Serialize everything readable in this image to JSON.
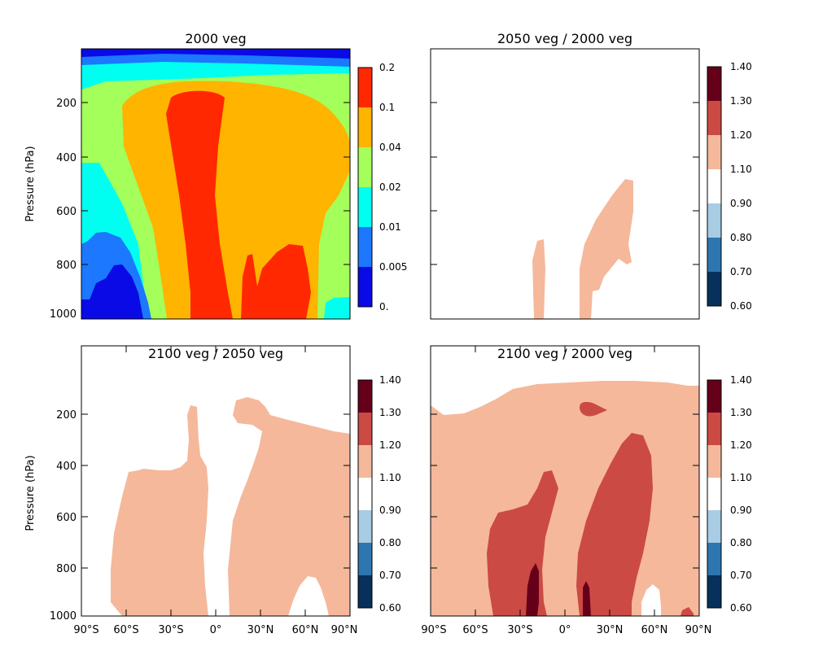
{
  "chart_data": [
    {
      "type": "contour",
      "title": "2000 veg",
      "ylabel": "Pressure (hPa)",
      "xlabel": "",
      "x_ticks": [],
      "y_ticks": [
        "200",
        "400",
        "600",
        "800",
        "1000"
      ],
      "ylim": [
        1000,
        0
      ],
      "xlim": [
        -90,
        90
      ],
      "colorbar": {
        "labels": [
          "0.",
          "0.005",
          "0.01",
          "0.02",
          "0.04",
          "0.1",
          "0.2"
        ],
        "colors": [
          "#0a0ae6",
          "#1c78ff",
          "#00fff0",
          "#a4ff5a",
          "#ffb400",
          "#ff2800"
        ]
      }
    },
    {
      "type": "contour",
      "title": "2050 veg / 2000 veg",
      "ylabel": "",
      "xlabel": "",
      "x_ticks": [],
      "y_ticks": [],
      "ylim": [
        1000,
        0
      ],
      "xlim": [
        -90,
        90
      ],
      "colorbar": {
        "labels": [
          "0.60",
          "0.70",
          "0.80",
          "0.90",
          "1.10",
          "1.20",
          "1.30",
          "1.40"
        ],
        "colors": [
          "#08305c",
          "#2e76b0",
          "#a7cce4",
          "#ffffff",
          "#f5b89b",
          "#cc4a44",
          "#66001a"
        ]
      }
    },
    {
      "type": "contour",
      "title": "2100 veg / 2050 veg",
      "ylabel": "Pressure (hPa)",
      "xlabel": "",
      "x_ticks": [
        "90°S",
        "60°S",
        "30°S",
        "0°",
        "30°N",
        "60°N",
        "90°N"
      ],
      "y_ticks": [
        "200",
        "400",
        "600",
        "800",
        "1000"
      ],
      "ylim": [
        1000,
        0
      ],
      "xlim": [
        -90,
        90
      ],
      "colorbar": {
        "labels": [
          "0.60",
          "0.70",
          "0.80",
          "0.90",
          "1.10",
          "1.20",
          "1.30",
          "1.40"
        ],
        "colors": [
          "#08305c",
          "#2e76b0",
          "#a7cce4",
          "#ffffff",
          "#f5b89b",
          "#cc4a44",
          "#66001a"
        ]
      }
    },
    {
      "type": "contour",
      "title": "2100 veg / 2000 veg",
      "ylabel": "",
      "xlabel": "",
      "x_ticks": [
        "90°S",
        "60°S",
        "30°S",
        "0°",
        "30°N",
        "60°N",
        "90°N"
      ],
      "y_ticks": [],
      "ylim": [
        1000,
        0
      ],
      "xlim": [
        -90,
        90
      ],
      "colorbar": {
        "labels": [
          "0.60",
          "0.70",
          "0.80",
          "0.90",
          "1.10",
          "1.20",
          "1.30",
          "1.40"
        ],
        "colors": [
          "#08305c",
          "#2e76b0",
          "#a7cce4",
          "#ffffff",
          "#f5b89b",
          "#cc4a44",
          "#66001a"
        ]
      }
    }
  ]
}
